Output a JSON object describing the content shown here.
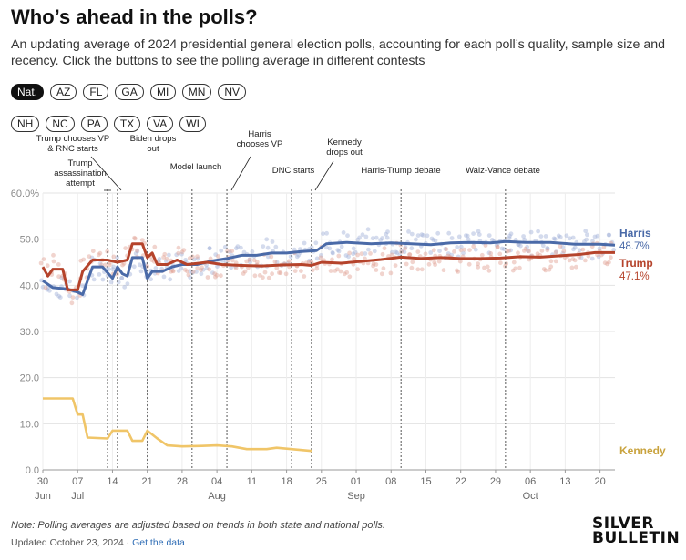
{
  "header": {
    "title": "Who’s ahead in the polls?",
    "subtitle": "An updating average of 2024 presidential general election polls, accounting for each poll’s quality, sample size and recency. Click the buttons to see the polling average in different contests"
  },
  "contests": {
    "row1": [
      "Nat.",
      "AZ",
      "FL",
      "GA",
      "MI",
      "MN",
      "NV"
    ],
    "row2": [
      "NH",
      "NC",
      "PA",
      "TX",
      "VA",
      "WI"
    ],
    "selected": "Nat."
  },
  "footer": {
    "note": "Note: Polling averages are adjusted based on trends in both state and national polls.",
    "updated": "Updated October 23, 2024 · ",
    "data_link": "Get the data",
    "logo_line1": "SILVER",
    "logo_line2": "BULLETIN"
  },
  "colors": {
    "harris": "#4a6aa8",
    "trump": "#b5432b",
    "kennedy": "#f0c568",
    "grid": "#e3e3e3",
    "event": "#555555"
  },
  "chart_data": {
    "type": "line",
    "x_start": "2024-06-30",
    "x_end": "2024-10-23",
    "ylim": [
      0,
      60
    ],
    "yticks": [
      "0.0",
      "10.0",
      "20.0",
      "30.0",
      "40.0",
      "50.0",
      "60.0%"
    ],
    "ytick_values": [
      0,
      10,
      20,
      30,
      40,
      50,
      60
    ],
    "xticks": [
      {
        "date": "2024-06-30",
        "label": "30",
        "month": "Jun"
      },
      {
        "date": "2024-07-07",
        "label": "07",
        "month": "Jul"
      },
      {
        "date": "2024-07-14",
        "label": "14"
      },
      {
        "date": "2024-07-21",
        "label": "21"
      },
      {
        "date": "2024-07-28",
        "label": "28"
      },
      {
        "date": "2024-08-04",
        "label": "04",
        "month": "Aug"
      },
      {
        "date": "2024-08-11",
        "label": "11"
      },
      {
        "date": "2024-08-18",
        "label": "18"
      },
      {
        "date": "2024-08-25",
        "label": "25"
      },
      {
        "date": "2024-09-01",
        "label": "01",
        "month": "Sep"
      },
      {
        "date": "2024-09-08",
        "label": "08"
      },
      {
        "date": "2024-09-15",
        "label": "15"
      },
      {
        "date": "2024-09-22",
        "label": "22"
      },
      {
        "date": "2024-09-29",
        "label": "29"
      },
      {
        "date": "2024-10-06",
        "label": "06",
        "month": "Oct"
      },
      {
        "date": "2024-10-13",
        "label": "13"
      },
      {
        "date": "2024-10-20",
        "label": "20"
      }
    ],
    "series": [
      {
        "name": "Harris",
        "end_label": "48.7%",
        "color": "#4a6aa8",
        "points": [
          [
            "2024-06-30",
            41
          ],
          [
            "2024-07-02",
            39.5
          ],
          [
            "2024-07-05",
            39.2
          ],
          [
            "2024-07-07",
            38.5
          ],
          [
            "2024-07-08",
            38
          ],
          [
            "2024-07-09",
            41
          ],
          [
            "2024-07-10",
            44
          ],
          [
            "2024-07-12",
            44
          ],
          [
            "2024-07-14",
            41.5
          ],
          [
            "2024-07-15",
            44
          ],
          [
            "2024-07-16",
            42.5
          ],
          [
            "2024-07-17",
            42
          ],
          [
            "2024-07-18",
            46
          ],
          [
            "2024-07-20",
            46
          ],
          [
            "2024-07-21",
            41.5
          ],
          [
            "2024-07-22",
            43
          ],
          [
            "2024-07-24",
            43
          ],
          [
            "2024-07-26",
            44
          ],
          [
            "2024-07-28",
            44.5
          ],
          [
            "2024-07-31",
            44.5
          ],
          [
            "2024-08-03",
            45.3
          ],
          [
            "2024-08-06",
            45.8
          ],
          [
            "2024-08-09",
            46.5
          ],
          [
            "2024-08-12",
            46.5
          ],
          [
            "2024-08-15",
            47
          ],
          [
            "2024-08-18",
            47
          ],
          [
            "2024-08-21",
            47.3
          ],
          [
            "2024-08-24",
            47.5
          ],
          [
            "2024-08-26",
            49
          ],
          [
            "2024-08-30",
            49.3
          ],
          [
            "2024-09-04",
            49
          ],
          [
            "2024-09-08",
            49.2
          ],
          [
            "2024-09-12",
            49
          ],
          [
            "2024-09-16",
            48.8
          ],
          [
            "2024-09-20",
            49.2
          ],
          [
            "2024-09-24",
            49.3
          ],
          [
            "2024-09-28",
            49.2
          ],
          [
            "2024-10-01",
            49.5
          ],
          [
            "2024-10-05",
            49.3
          ],
          [
            "2024-10-10",
            49.3
          ],
          [
            "2024-10-15",
            48.9
          ],
          [
            "2024-10-20",
            48.9
          ],
          [
            "2024-10-23",
            48.7
          ]
        ]
      },
      {
        "name": "Trump",
        "end_label": "47.1%",
        "color": "#b5432b",
        "points": [
          [
            "2024-06-30",
            44
          ],
          [
            "2024-07-01",
            42
          ],
          [
            "2024-07-02",
            43.5
          ],
          [
            "2024-07-04",
            43.5
          ],
          [
            "2024-07-05",
            39
          ],
          [
            "2024-07-06",
            39
          ],
          [
            "2024-07-07",
            39
          ],
          [
            "2024-07-08",
            43
          ],
          [
            "2024-07-10",
            45.5
          ],
          [
            "2024-07-13",
            45.5
          ],
          [
            "2024-07-15",
            45
          ],
          [
            "2024-07-17",
            45.5
          ],
          [
            "2024-07-18",
            49
          ],
          [
            "2024-07-20",
            49
          ],
          [
            "2024-07-21",
            46
          ],
          [
            "2024-07-22",
            47
          ],
          [
            "2024-07-23",
            44.5
          ],
          [
            "2024-07-25",
            44.5
          ],
          [
            "2024-07-27",
            45.5
          ],
          [
            "2024-07-29",
            44.5
          ],
          [
            "2024-08-02",
            45
          ],
          [
            "2024-08-05",
            44.5
          ],
          [
            "2024-08-09",
            44.3
          ],
          [
            "2024-08-13",
            44.2
          ],
          [
            "2024-08-17",
            44.4
          ],
          [
            "2024-08-21",
            44.5
          ],
          [
            "2024-08-23",
            44.3
          ],
          [
            "2024-08-25",
            45
          ],
          [
            "2024-08-29",
            44.8
          ],
          [
            "2024-09-02",
            45.2
          ],
          [
            "2024-09-06",
            45.6
          ],
          [
            "2024-09-10",
            46.1
          ],
          [
            "2024-09-14",
            45.8
          ],
          [
            "2024-09-18",
            46
          ],
          [
            "2024-09-22",
            45.8
          ],
          [
            "2024-09-26",
            45.8
          ],
          [
            "2024-09-30",
            45.9
          ],
          [
            "2024-10-04",
            46.2
          ],
          [
            "2024-10-08",
            46.1
          ],
          [
            "2024-10-12",
            46.4
          ],
          [
            "2024-10-16",
            46.7
          ],
          [
            "2024-10-19",
            47.1
          ],
          [
            "2024-10-23",
            47.1
          ]
        ]
      },
      {
        "name": "Kennedy",
        "end_label": "",
        "color": "#f0c568",
        "points": [
          [
            "2024-06-30",
            15.5
          ],
          [
            "2024-07-06",
            15.5
          ],
          [
            "2024-07-07",
            12
          ],
          [
            "2024-07-08",
            12
          ],
          [
            "2024-07-09",
            7
          ],
          [
            "2024-07-13",
            6.8
          ],
          [
            "2024-07-14",
            8.5
          ],
          [
            "2024-07-17",
            8.5
          ],
          [
            "2024-07-18",
            6.3
          ],
          [
            "2024-07-20",
            6.3
          ],
          [
            "2024-07-21",
            8.5
          ],
          [
            "2024-07-23",
            6.8
          ],
          [
            "2024-07-25",
            5.3
          ],
          [
            "2024-07-28",
            5.1
          ],
          [
            "2024-08-01",
            5.2
          ],
          [
            "2024-08-04",
            5.3
          ],
          [
            "2024-08-07",
            5.1
          ],
          [
            "2024-08-10",
            4.5
          ],
          [
            "2024-08-14",
            4.5
          ],
          [
            "2024-08-16",
            4.8
          ],
          [
            "2024-08-20",
            4.4
          ],
          [
            "2024-08-23",
            4.1
          ]
        ]
      }
    ],
    "events": [
      {
        "date": "2024-07-13",
        "label": [
          "Trump",
          "assassination",
          "attempt"
        ]
      },
      {
        "date": "2024-07-15",
        "label": [
          "Trump chooses VP",
          "& RNC starts"
        ]
      },
      {
        "date": "2024-07-21",
        "label": [
          "Biden drops",
          "out"
        ]
      },
      {
        "date": "2024-07-30",
        "label": [
          "Model launch"
        ]
      },
      {
        "date": "2024-08-06",
        "label": [
          "Harris",
          "chooses VP"
        ]
      },
      {
        "date": "2024-08-19",
        "label": [
          "DNC starts"
        ]
      },
      {
        "date": "2024-08-23",
        "label": [
          "Kennedy",
          "drops out"
        ]
      },
      {
        "date": "2024-09-10",
        "label": [
          "Harris-Trump debate"
        ]
      },
      {
        "date": "2024-10-01",
        "label": [
          "Walz-Vance debate"
        ]
      }
    ]
  }
}
